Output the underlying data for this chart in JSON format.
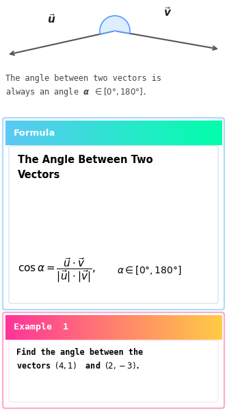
{
  "formula_label": "Formula",
  "formula_header_color_left": "#5bc8f5",
  "formula_header_color_right": "#00ffaa",
  "example_label": "Example  1",
  "example_header_color_left": "#ff3399",
  "example_header_color_right": "#ffcc44",
  "bg_color": "#ffffff",
  "vector_color": "#555555",
  "angle_arc_color": "#5599ff",
  "angle_fill_color": "#ddeeff",
  "intro_line1": "The angle between two vectors is",
  "intro_line2_plain": "always an angle ",
  "formula_title_line1": "The Angle Between Two",
  "formula_title_line2": "Vectors"
}
